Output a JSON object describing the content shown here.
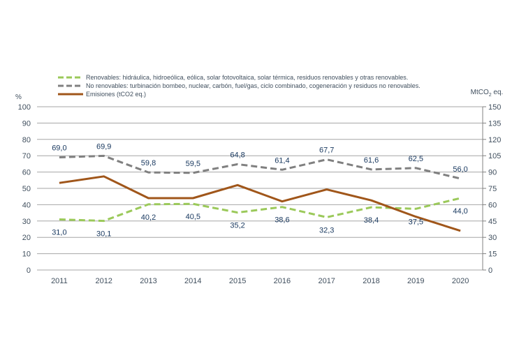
{
  "chart_data": {
    "type": "line",
    "title": "",
    "categories": [
      "2011",
      "2012",
      "2013",
      "2014",
      "2015",
      "2016",
      "2017",
      "2018",
      "2019",
      "2020"
    ],
    "left_axis": {
      "label": "%",
      "range": [
        0,
        100
      ],
      "ticks": [
        0,
        10,
        20,
        30,
        40,
        50,
        60,
        70,
        80,
        90,
        100
      ]
    },
    "right_axis": {
      "label_main": "MtCO",
      "label_sub": "2",
      "label_suffix": " eq.",
      "range": [
        0,
        150
      ],
      "ticks": [
        0,
        15,
        30,
        45,
        60,
        75,
        90,
        105,
        120,
        135,
        150
      ]
    },
    "grid": true,
    "legend_position": "top-left",
    "series": [
      {
        "name": "Renovables: hidráulica, hidroeólica, eólica, solar fotovoltaica, solar térmica, residuos renovables y otras renovables.",
        "axis": "left",
        "style": "dashed",
        "color": "#9bc95a",
        "values": [
          31.0,
          30.1,
          40.2,
          40.5,
          35.2,
          38.6,
          32.3,
          38.4,
          37.5,
          44.0
        ],
        "labels": [
          "31,0",
          "30,1",
          "40,2",
          "40,5",
          "35,2",
          "38,6",
          "32,3",
          "38,4",
          "37,5",
          "44,0"
        ],
        "label_position": "below"
      },
      {
        "name": "No renovables: turbinación bombeo, nuclear, carbón, fuel/gas, ciclo combinado, cogeneración y residuos no renovables.",
        "axis": "left",
        "style": "dashed",
        "color": "#808080",
        "values": [
          69.0,
          69.9,
          59.8,
          59.5,
          64.8,
          61.4,
          67.7,
          61.6,
          62.5,
          56.0
        ],
        "labels": [
          "69,0",
          "69,9",
          "59,8",
          "59,5",
          "64,8",
          "61,4",
          "67,7",
          "61,6",
          "62,5",
          "56,0"
        ],
        "label_position": "above"
      },
      {
        "name": "Emisiones (tCO2 eq.)",
        "axis": "right",
        "style": "solid",
        "color": "#a0561a",
        "values": [
          80,
          86,
          66,
          66,
          78,
          63,
          74,
          64,
          49,
          36
        ],
        "labels": [],
        "label_position": "none"
      }
    ]
  }
}
